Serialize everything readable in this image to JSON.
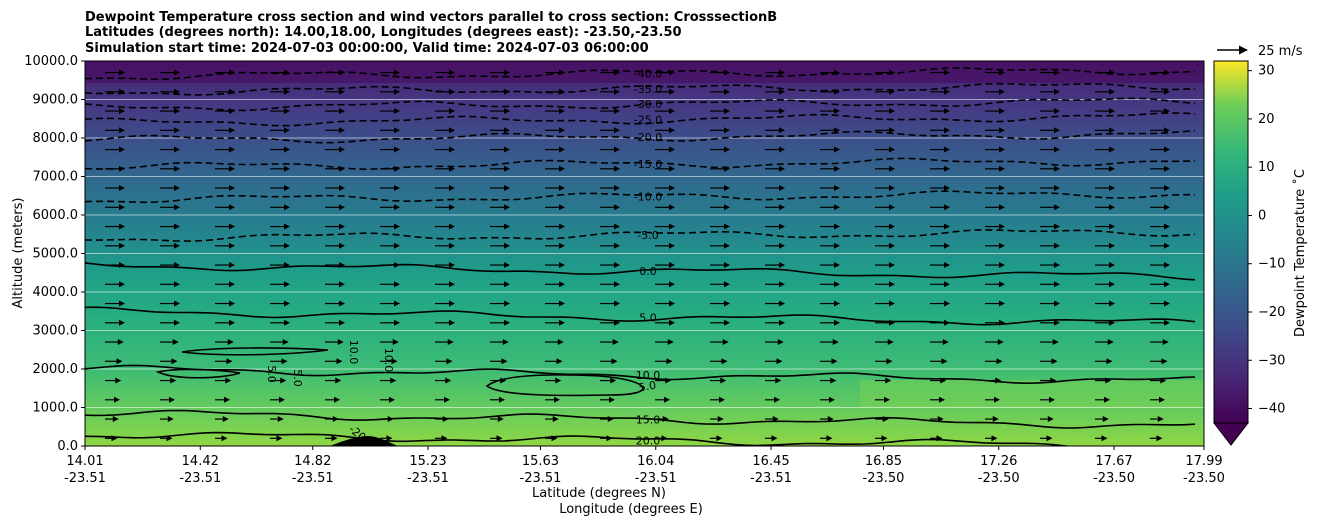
{
  "chart_data": {
    "type": "contour",
    "title_lines": [
      "Dewpoint Temperature cross section and wind vectors parallel to cross section: CrosssectionB",
      "Latitudes (degrees north): 14.00,18.00, Longitudes (degrees east): -23.50,-23.50",
      "Simulation start time: 2024-07-03 00:00:00, Valid time: 2024-07-03 06:00:00"
    ],
    "xlabel": "Latitude (degrees N)",
    "xlabel2": "Longitude (degrees E)",
    "ylabel": "Altitude (meters)",
    "ylim": [
      0,
      10000
    ],
    "yticks": [
      "0.0",
      "1000.0",
      "2000.0",
      "3000.0",
      "4000.0",
      "5000.0",
      "6000.0",
      "7000.0",
      "8000.0",
      "9000.0",
      "10000.0"
    ],
    "xticks": [
      {
        "lat": "14.01",
        "lon": "-23.51"
      },
      {
        "lat": "14.42",
        "lon": "-23.51"
      },
      {
        "lat": "14.82",
        "lon": "-23.51"
      },
      {
        "lat": "15.23",
        "lon": "-23.51"
      },
      {
        "lat": "15.63",
        "lon": "-23.51"
      },
      {
        "lat": "16.04",
        "lon": "-23.51"
      },
      {
        "lat": "16.45",
        "lon": "-23.51"
      },
      {
        "lat": "16.85",
        "lon": "-23.50"
      },
      {
        "lat": "17.26",
        "lon": "-23.50"
      },
      {
        "lat": "17.67",
        "lon": "-23.50"
      },
      {
        "lat": "17.99",
        "lon": "-23.50"
      }
    ],
    "colorbar": {
      "label": "Dewpoint Temperature ˚C",
      "range": [
        -43,
        32
      ],
      "ticks": [
        "−40",
        "−30",
        "−20",
        "−10",
        "0",
        "10",
        "20",
        "30"
      ],
      "colormap": "viridis"
    },
    "wind_key": "25 m/s",
    "contour_levels": [
      {
        "value": 20.0,
        "label": "20.0",
        "altitude": 300
      },
      {
        "value": 15.0,
        "label": "15.0",
        "altitude": 850
      },
      {
        "value": 10.0,
        "label": "10.0",
        "altitude": 2000
      },
      {
        "value": 5.0,
        "label": "5.0",
        "altitude": 3500
      },
      {
        "value": 0.0,
        "label": "0.0",
        "altitude": 4700
      },
      {
        "value": -5.0,
        "label": "-5.0",
        "altitude": 5400
      },
      {
        "value": -10.0,
        "label": "-10.0",
        "altitude": 6400
      },
      {
        "value": -15.0,
        "label": "-15.0",
        "altitude": 7250
      },
      {
        "value": -20.0,
        "label": "-20.0",
        "altitude": 7950
      },
      {
        "value": -25.0,
        "label": "-25.0",
        "altitude": 8400
      },
      {
        "value": -30.0,
        "label": "-30.0",
        "altitude": 8800
      },
      {
        "value": -35.0,
        "label": "-35.0",
        "altitude": 9200
      },
      {
        "value": -40.0,
        "label": "-40.0",
        "altitude": 9600
      }
    ],
    "extra_labels": [
      "5.0",
      "5.0",
      "10.0",
      "10.0",
      "5.0",
      "-40.0",
      "-40.0",
      "-20"
    ]
  }
}
